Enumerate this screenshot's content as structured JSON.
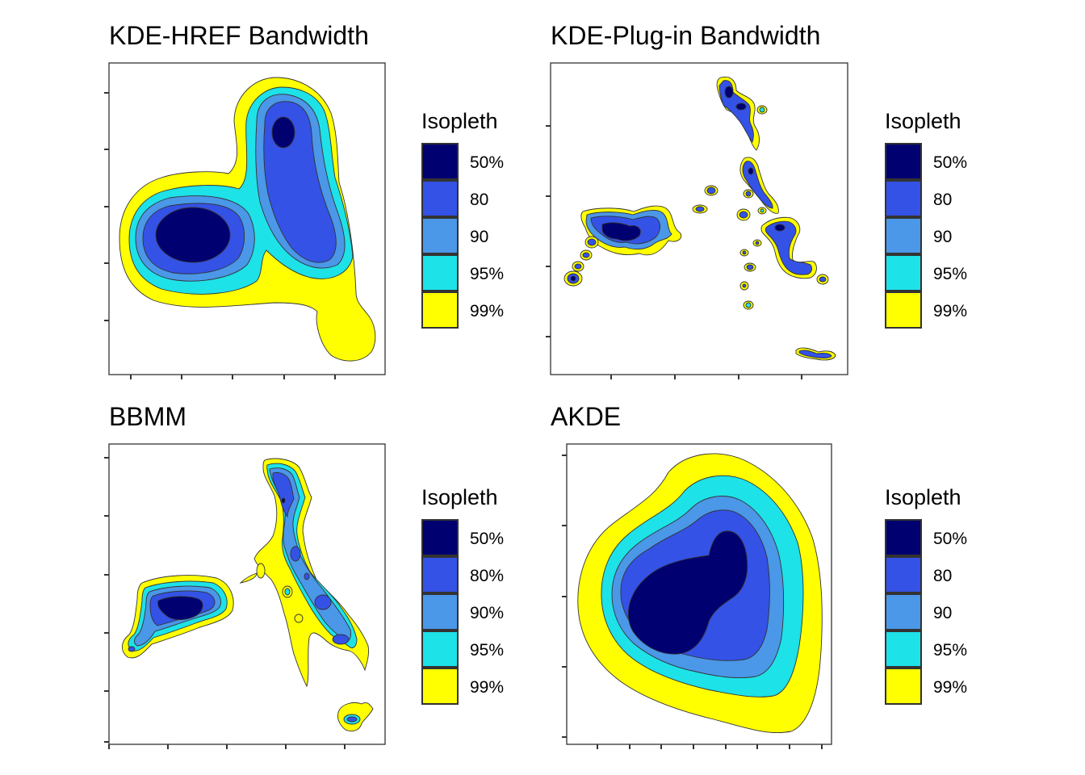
{
  "chart_data": [
    {
      "type": "contour",
      "id": "href",
      "title": "KDE-HREF Bandwidth",
      "xlabel": "",
      "ylabel": "",
      "legend": {
        "title": "Isopleth",
        "placement": "right",
        "labels": [
          "50%",
          "80",
          "90",
          "95%",
          "99%"
        ]
      },
      "levels": [
        50,
        80,
        90,
        95,
        99
      ],
      "colors": [
        "#000070",
        "#3452e6",
        "#4b97e8",
        "#1de2e8",
        "#ffff00"
      ],
      "x_tick_count": 5,
      "y_tick_count": 5,
      "grid": false
    },
    {
      "type": "contour",
      "id": "plugin",
      "title": "KDE-Plug-in Bandwidth",
      "xlabel": "",
      "ylabel": "",
      "legend": {
        "title": "Isopleth",
        "placement": "right",
        "labels": [
          "50%",
          "80",
          "90",
          "95%",
          "99%"
        ]
      },
      "levels": [
        50,
        80,
        90,
        95,
        99
      ],
      "colors": [
        "#000070",
        "#3452e6",
        "#4b97e8",
        "#1de2e8",
        "#ffff00"
      ],
      "x_tick_count": 4,
      "y_tick_count": 4,
      "grid": false
    },
    {
      "type": "contour",
      "id": "bbmm",
      "title": "BBMM",
      "xlabel": "",
      "ylabel": "",
      "legend": {
        "title": "Isopleth",
        "placement": "right",
        "labels": [
          "50%",
          "80%",
          "90%",
          "95%",
          "99%"
        ]
      },
      "levels": [
        50,
        80,
        90,
        95,
        99
      ],
      "colors": [
        "#000070",
        "#3452e6",
        "#4b97e8",
        "#1de2e8",
        "#ffff00"
      ],
      "x_tick_count": 5,
      "y_tick_count": 6,
      "grid": false
    },
    {
      "type": "contour",
      "id": "akde",
      "title": "AKDE",
      "xlabel": "",
      "ylabel": "",
      "legend": {
        "title": "Isopleth",
        "placement": "right",
        "labels": [
          "50%",
          "80",
          "90",
          "95%",
          "99%"
        ]
      },
      "levels": [
        50,
        80,
        90,
        95,
        99
      ],
      "colors": [
        "#000070",
        "#3452e6",
        "#4b97e8",
        "#1de2e8",
        "#ffff00"
      ],
      "x_tick_count": 8,
      "y_tick_count": 5,
      "grid": false
    }
  ]
}
